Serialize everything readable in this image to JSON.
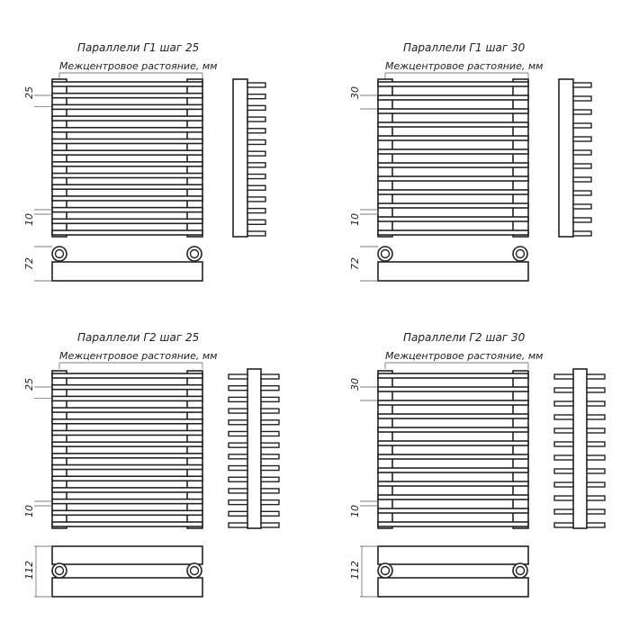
{
  "panels": [
    {
      "title": "Параллели Г1 шаг 25",
      "center_label": "Межцентровое растояние, мм",
      "pitch_dim": "25",
      "gap_dim": "10",
      "depth_dim": "72",
      "type": "G1",
      "bars": 14
    },
    {
      "title": "Параллели Г1 шаг 30",
      "center_label": "Межцентровое растояние, мм",
      "pitch_dim": "30",
      "gap_dim": "10",
      "depth_dim": "72",
      "type": "G1",
      "bars": 12
    },
    {
      "title": "Параллели Г2 шаг 25",
      "center_label": "Межцентровое растояние, мм",
      "pitch_dim": "25",
      "gap_dim": "10",
      "depth_dim": "112",
      "type": "G2",
      "bars": 14
    },
    {
      "title": "Параллели Г2 шаг 30",
      "center_label": "Межцентровое растояние, мм",
      "pitch_dim": "30",
      "gap_dim": "10",
      "depth_dim": "112",
      "type": "G2",
      "bars": 12
    }
  ],
  "line_color": "#222222"
}
